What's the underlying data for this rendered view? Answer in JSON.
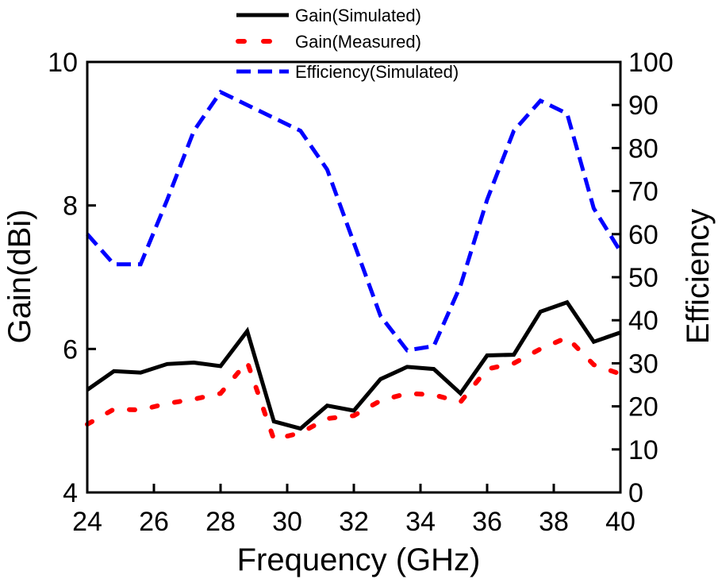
{
  "chart_data": {
    "type": "line",
    "title": "",
    "xlabel": "Frequency (GHz)",
    "ylabel_left": "Gain(dBi)",
    "ylabel_right": "Efficiency",
    "xlim": [
      24,
      40
    ],
    "ylim_left": [
      4,
      10
    ],
    "ylim_right": [
      0,
      100
    ],
    "x_ticks": [
      24,
      26,
      28,
      30,
      32,
      34,
      36,
      38,
      40
    ],
    "x_tick_labels": [
      "24",
      "26",
      "28",
      "30",
      "32",
      "34",
      "36",
      "38",
      "40"
    ],
    "y_left_ticks": [
      4,
      6,
      8,
      10
    ],
    "y_left_tick_labels": [
      "4",
      "6",
      "8",
      "10"
    ],
    "y_right_ticks": [
      0,
      10,
      20,
      30,
      40,
      50,
      60,
      70,
      80,
      90,
      100
    ],
    "y_right_tick_labels": [
      "0",
      "10",
      "20",
      "30",
      "40",
      "50",
      "60",
      "70",
      "80",
      "90",
      "100"
    ],
    "legend_position": "top-center",
    "legend": [
      "Gain(Simulated)",
      "Gain(Measured)",
      "Efficiency(Simulated)"
    ],
    "series": [
      {
        "name": "Gain(Simulated)",
        "axis": "left",
        "color": "#000000",
        "style": "solid",
        "x": [
          24,
          24.8,
          25.6,
          26.4,
          27.2,
          28.0,
          28.8,
          29.6,
          30.4,
          31.2,
          32.0,
          32.8,
          33.6,
          34.4,
          35.2,
          36.0,
          36.8,
          37.6,
          38.4,
          39.2,
          40.0
        ],
        "values": [
          5.43,
          5.69,
          5.67,
          5.79,
          5.81,
          5.76,
          6.25,
          4.99,
          4.89,
          5.21,
          5.14,
          5.58,
          5.75,
          5.72,
          5.38,
          5.91,
          5.92,
          6.52,
          6.65,
          6.1,
          6.23
        ]
      },
      {
        "name": "Gain(Measured)",
        "axis": "left",
        "color": "#ff0000",
        "style": "dotted",
        "x": [
          24,
          24.8,
          25.6,
          26.4,
          27.2,
          28.0,
          28.8,
          29.6,
          30.4,
          31.2,
          32.0,
          32.8,
          33.6,
          34.4,
          35.2,
          36.0,
          36.8,
          37.6,
          38.4,
          39.2,
          40.0
        ],
        "values": [
          4.95,
          5.16,
          5.15,
          5.24,
          5.3,
          5.38,
          5.82,
          4.74,
          4.83,
          5.03,
          5.07,
          5.28,
          5.38,
          5.36,
          5.26,
          5.72,
          5.8,
          6.0,
          6.16,
          5.78,
          5.65
        ]
      },
      {
        "name": "Efficiency(Simulated)",
        "axis": "right",
        "color": "#0000ff",
        "style": "dashed",
        "x": [
          24,
          24.8,
          25.6,
          26.4,
          27.2,
          28.0,
          28.8,
          29.6,
          30.4,
          31.2,
          32.0,
          32.8,
          33.6,
          34.4,
          35.2,
          36.0,
          36.8,
          37.6,
          38.4,
          39.2,
          40.0
        ],
        "values": [
          60,
          53,
          53,
          68,
          84,
          93,
          90,
          87,
          84,
          75,
          58,
          41,
          33,
          34,
          48,
          68,
          84,
          91,
          88,
          66,
          56
        ]
      }
    ]
  }
}
